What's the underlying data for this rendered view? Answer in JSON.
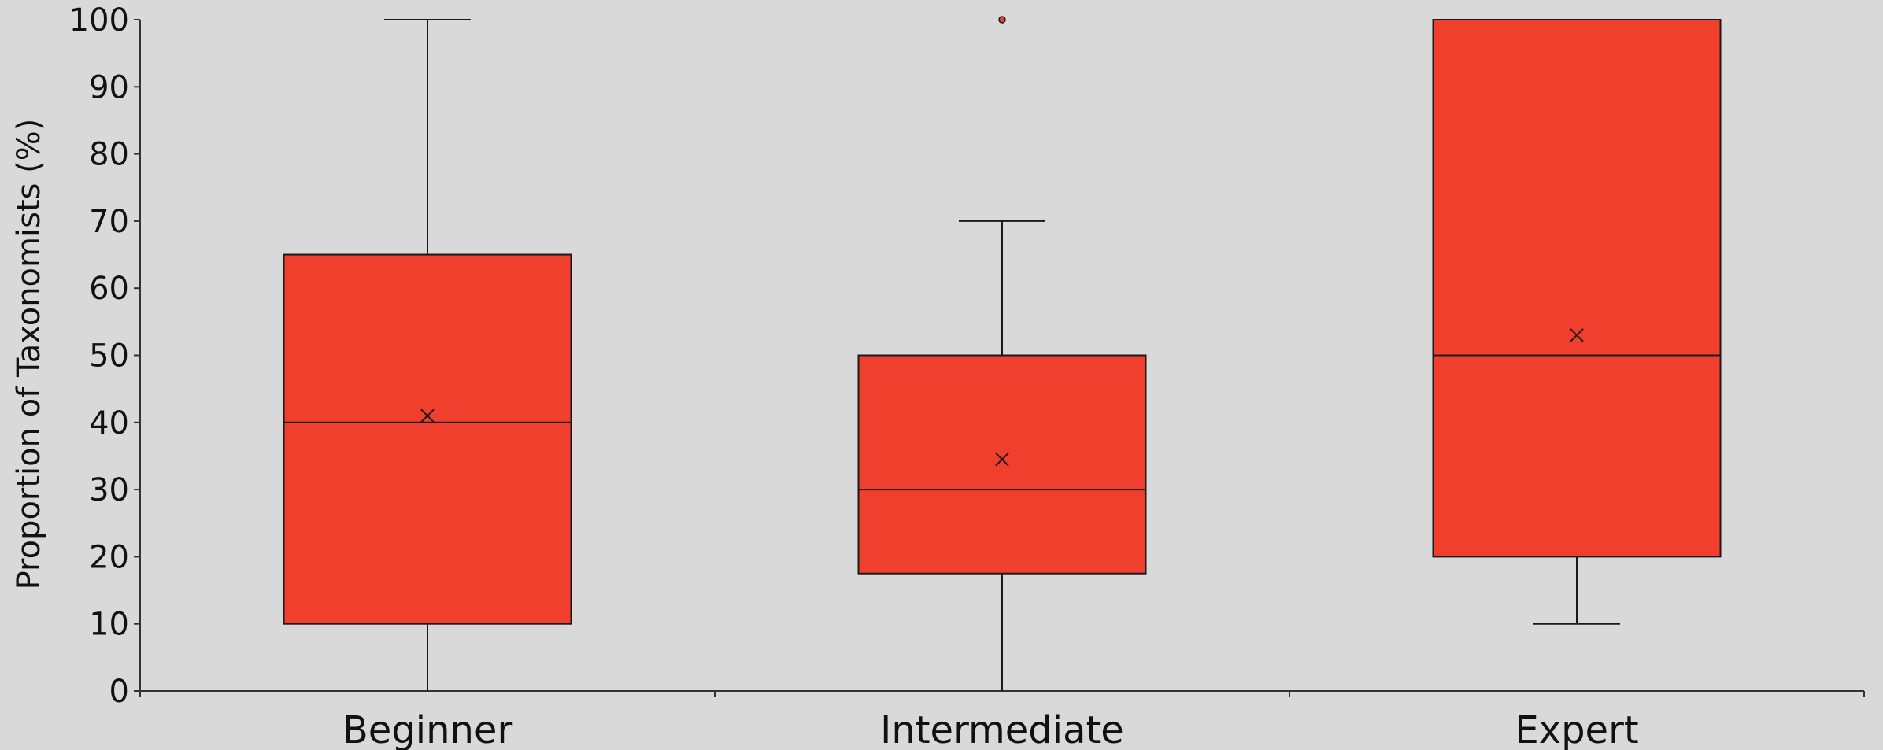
{
  "chart_data": {
    "type": "box",
    "ylabel": "Proportion of Taxonomists (%)",
    "xlabel": "",
    "ylim": [
      0,
      100
    ],
    "yticks": [
      0,
      10,
      20,
      30,
      40,
      50,
      60,
      70,
      80,
      90,
      100
    ],
    "grid": false,
    "categories": [
      "Beginner",
      "Intermediate",
      "Expert"
    ],
    "boxes": [
      {
        "category": "Beginner",
        "whisker_low": 0,
        "q1": 10,
        "median": 40,
        "q3": 65,
        "whisker_high": 100,
        "mean": 41,
        "outliers": []
      },
      {
        "category": "Intermediate",
        "whisker_low": 0,
        "q1": 17.5,
        "median": 30,
        "q3": 50,
        "whisker_high": 70,
        "mean": 34.5,
        "outliers": [
          100
        ]
      },
      {
        "category": "Expert",
        "whisker_low": 10,
        "q1": 20,
        "median": 50,
        "q3": 100,
        "whisker_high": 100,
        "mean": 53,
        "outliers": []
      }
    ],
    "colors": {
      "box_fill": "#f0402d",
      "box_stroke": "#1a1a1a",
      "background": "#d9d9d9",
      "axis": "#333333",
      "outlier_fill": "#f0402d"
    }
  }
}
